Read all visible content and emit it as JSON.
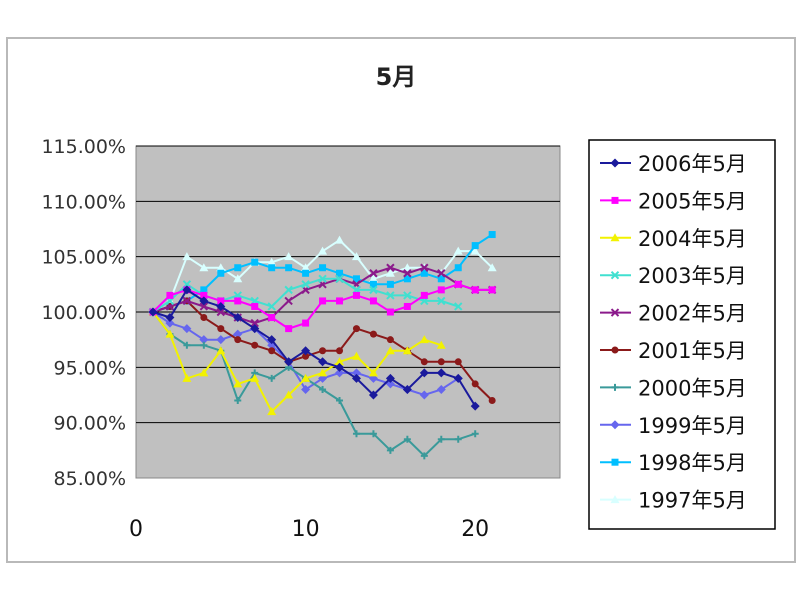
{
  "chart_data": {
    "type": "line",
    "title": "5月",
    "xlabel": "",
    "ylabel": "",
    "xlim": [
      0,
      25
    ],
    "xticks": [
      0,
      10,
      20
    ],
    "ylim": [
      85,
      115
    ],
    "yticks": [
      "85.00%",
      "90.00%",
      "95.00%",
      "100.00%",
      "105.00%",
      "110.00%",
      "115.00%"
    ],
    "grid": true,
    "legend_position": "right",
    "series": [
      {
        "name": "2006年5月",
        "color": "#1a1a9c",
        "marker": "diamond",
        "x": [
          1,
          2,
          3,
          4,
          5,
          6,
          7,
          8,
          9,
          10,
          11,
          12,
          13,
          14,
          15,
          16,
          17,
          18,
          19,
          20
        ],
        "y": [
          100,
          99.5,
          102,
          101,
          100.5,
          99.5,
          98.5,
          97.5,
          95.5,
          96.5,
          95.5,
          95,
          94,
          92.5,
          94,
          93,
          94.5,
          94.5,
          94,
          91.5
        ]
      },
      {
        "name": "2005年5月",
        "color": "#ff00ff",
        "marker": "square",
        "x": [
          1,
          2,
          3,
          4,
          5,
          6,
          7,
          8,
          9,
          10,
          11,
          12,
          13,
          14,
          15,
          16,
          17,
          18,
          19,
          20,
          21
        ],
        "y": [
          100,
          101.5,
          102,
          101.5,
          101,
          101,
          100.5,
          99.5,
          98.5,
          99,
          101,
          101,
          101.5,
          101,
          100,
          100.5,
          101.5,
          102,
          102.5,
          102,
          102
        ]
      },
      {
        "name": "2004年5月",
        "color": "#f2f200",
        "marker": "triangle",
        "x": [
          1,
          2,
          3,
          4,
          5,
          6,
          7,
          8,
          9,
          10,
          11,
          12,
          13,
          14,
          15,
          16,
          17,
          18
        ],
        "y": [
          100,
          98,
          94,
          94.5,
          96.5,
          93.5,
          94,
          91,
          92.5,
          94,
          94.5,
          95.5,
          96,
          94.5,
          96.5,
          96.5,
          97.5,
          97
        ]
      },
      {
        "name": "2003年5月",
        "color": "#40e0d0",
        "marker": "x",
        "x": [
          1,
          2,
          3,
          4,
          5,
          6,
          7,
          8,
          9,
          10,
          11,
          12,
          13,
          14,
          15,
          16,
          17,
          18,
          19
        ],
        "y": [
          100,
          101,
          102.5,
          101.5,
          101,
          101.5,
          101,
          100.5,
          102,
          102.5,
          103,
          103,
          102,
          102,
          101.5,
          101.5,
          101,
          101,
          100.5
        ]
      },
      {
        "name": "2002年5月",
        "color": "#8b1a8b",
        "marker": "x",
        "x": [
          1,
          2,
          3,
          4,
          5,
          6,
          7,
          8,
          9,
          10,
          11,
          12,
          13,
          14,
          15,
          16,
          17,
          18,
          19,
          20,
          21
        ],
        "y": [
          100,
          100.5,
          101,
          100.5,
          100,
          99.5,
          99,
          99.5,
          101,
          102,
          102.5,
          103,
          102.5,
          103.5,
          104,
          103.5,
          104,
          103.5,
          102.5,
          102,
          102
        ]
      },
      {
        "name": "2001年5月",
        "color": "#8b1a1a",
        "marker": "circle",
        "x": [
          1,
          2,
          3,
          4,
          5,
          6,
          7,
          8,
          9,
          10,
          11,
          12,
          13,
          14,
          15,
          16,
          17,
          18,
          19,
          20,
          21
        ],
        "y": [
          100,
          100.5,
          101,
          99.5,
          98.5,
          97.5,
          97,
          96.5,
          95.5,
          96,
          96.5,
          96.5,
          98.5,
          98,
          97.5,
          96.5,
          95.5,
          95.5,
          95.5,
          93.5,
          92
        ]
      },
      {
        "name": "2000年5月",
        "color": "#3a9a9a",
        "marker": "plus",
        "x": [
          1,
          2,
          3,
          4,
          5,
          6,
          7,
          8,
          9,
          10,
          11,
          12,
          13,
          14,
          15,
          16,
          17,
          18,
          19,
          20
        ],
        "y": [
          100,
          98,
          97,
          97,
          96.5,
          92,
          94.5,
          94,
          95,
          94,
          93,
          92,
          89,
          89,
          87.5,
          88.5,
          87,
          88.5,
          88.5,
          89
        ]
      },
      {
        "name": "1999年5月",
        "color": "#6666ee",
        "marker": "diamond",
        "x": [
          1,
          2,
          3,
          4,
          5,
          6,
          7,
          8,
          9,
          10,
          11,
          12,
          13,
          14,
          15,
          16,
          17,
          18,
          19
        ],
        "y": [
          100,
          99,
          98.5,
          97.5,
          97.5,
          98,
          98.5,
          97,
          95.5,
          93,
          94,
          94.5,
          94.5,
          94,
          93.5,
          93,
          92.5,
          93,
          94
        ]
      },
      {
        "name": "1998年5月",
        "color": "#00bfff",
        "marker": "square",
        "x": [
          1,
          2,
          3,
          4,
          5,
          6,
          7,
          8,
          9,
          10,
          11,
          12,
          13,
          14,
          15,
          16,
          17,
          18,
          19,
          20,
          21
        ],
        "y": [
          100,
          100.5,
          101,
          102,
          103.5,
          104,
          104.5,
          104,
          104,
          103.5,
          104,
          103.5,
          103,
          102.5,
          102.5,
          103,
          103.5,
          103,
          104,
          106,
          107
        ]
      },
      {
        "name": "1997年5月",
        "color": "#d8ffff",
        "marker": "triangle",
        "x": [
          1,
          2,
          3,
          4,
          5,
          6,
          7,
          8,
          9,
          10,
          11,
          12,
          13,
          14,
          15,
          16,
          17,
          18,
          19,
          20,
          21
        ],
        "y": [
          100,
          101,
          105,
          104,
          104,
          103,
          104.5,
          104.5,
          105,
          104,
          105.5,
          106.5,
          105,
          103,
          103.5,
          104,
          104,
          103.5,
          105.5,
          105.5,
          104
        ]
      }
    ]
  }
}
